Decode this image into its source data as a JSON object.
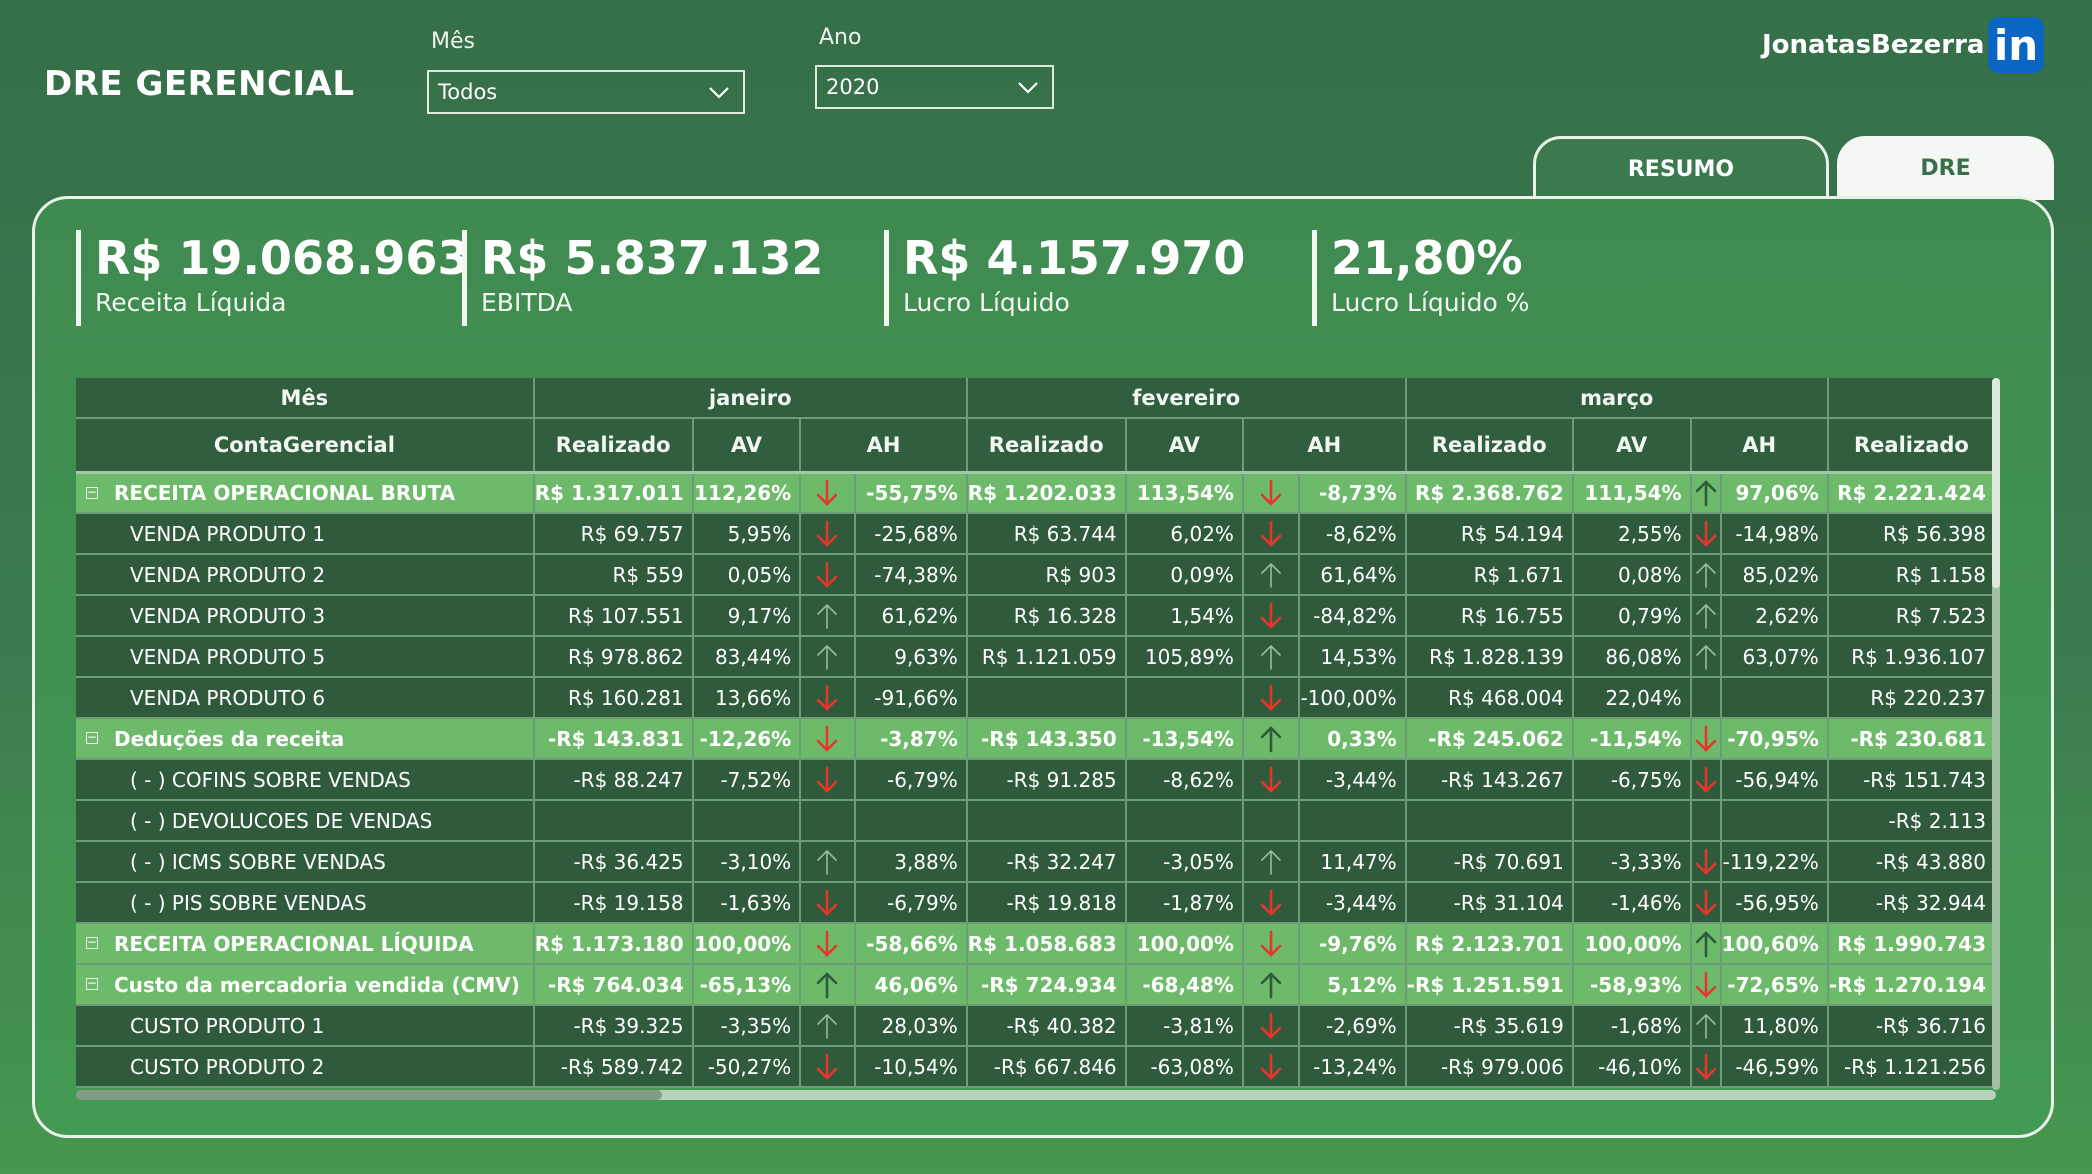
{
  "header": {
    "title": "DRE GERENCIAL",
    "brand": "JonatasBezerra",
    "linkedin_glyph": "in"
  },
  "filters": {
    "mes": {
      "label": "Mês",
      "value": "Todos"
    },
    "ano": {
      "label": "Ano",
      "value": "2020"
    }
  },
  "tabs": [
    {
      "label": "RESUMO"
    },
    {
      "label": "DRE",
      "active": true
    }
  ],
  "kpis": [
    {
      "value": "R$ 19.068.963",
      "label": "Receita Líquida"
    },
    {
      "value": "R$ 5.837.132",
      "label": "EBITDA"
    },
    {
      "value": "R$ 4.157.970",
      "label": "Lucro Líquido"
    },
    {
      "value": "21,80%",
      "label": "Lucro Líquido %"
    }
  ],
  "table": {
    "month_header_label": "Mês",
    "row_header_label": "ContaGerencial",
    "months": [
      "janeiro",
      "fevereiro",
      "março",
      ""
    ],
    "measures": [
      "Realizado",
      "AV",
      "AH"
    ],
    "rows": [
      {
        "name": "RECEITA OPERACIONAL BRUTA",
        "group": true,
        "cells": [
          {
            "r": "R$ 1.317.011",
            "av": "112,26%",
            "ah": "-55,75%",
            "dir": "down",
            "tone": "red"
          },
          {
            "r": "R$ 1.202.033",
            "av": "113,54%",
            "ah": "-8,73%",
            "dir": "down",
            "tone": "red"
          },
          {
            "r": "R$ 2.368.762",
            "av": "111,54%",
            "ah": "97,06%",
            "dir": "up",
            "tone": "dark"
          },
          {
            "r": "R$ 2.221.424"
          }
        ]
      },
      {
        "name": "VENDA PRODUTO 1",
        "cells": [
          {
            "r": "R$ 69.757",
            "av": "5,95%",
            "ah": "-25,68%",
            "dir": "down",
            "tone": "red"
          },
          {
            "r": "R$ 63.744",
            "av": "6,02%",
            "ah": "-8,62%",
            "dir": "down",
            "tone": "red"
          },
          {
            "r": "R$ 54.194",
            "av": "2,55%",
            "ah": "-14,98%",
            "dir": "down",
            "tone": "red"
          },
          {
            "r": "R$ 56.398"
          }
        ]
      },
      {
        "name": "VENDA PRODUTO 2",
        "cells": [
          {
            "r": "R$ 559",
            "av": "0,05%",
            "ah": "-74,38%",
            "dir": "down",
            "tone": "red"
          },
          {
            "r": "R$ 903",
            "av": "0,09%",
            "ah": "61,64%",
            "dir": "up",
            "tone": "light"
          },
          {
            "r": "R$ 1.671",
            "av": "0,08%",
            "ah": "85,02%",
            "dir": "up",
            "tone": "light"
          },
          {
            "r": "R$ 1.158"
          }
        ]
      },
      {
        "name": "VENDA PRODUTO 3",
        "cells": [
          {
            "r": "R$ 107.551",
            "av": "9,17%",
            "ah": "61,62%",
            "dir": "up",
            "tone": "light"
          },
          {
            "r": "R$ 16.328",
            "av": "1,54%",
            "ah": "-84,82%",
            "dir": "down",
            "tone": "red"
          },
          {
            "r": "R$ 16.755",
            "av": "0,79%",
            "ah": "2,62%",
            "dir": "up",
            "tone": "light"
          },
          {
            "r": "R$ 7.523"
          }
        ]
      },
      {
        "name": "VENDA PRODUTO 5",
        "cells": [
          {
            "r": "R$ 978.862",
            "av": "83,44%",
            "ah": "9,63%",
            "dir": "up",
            "tone": "light"
          },
          {
            "r": "R$ 1.121.059",
            "av": "105,89%",
            "ah": "14,53%",
            "dir": "up",
            "tone": "light"
          },
          {
            "r": "R$ 1.828.139",
            "av": "86,08%",
            "ah": "63,07%",
            "dir": "up",
            "tone": "light"
          },
          {
            "r": "R$ 1.936.107"
          }
        ]
      },
      {
        "name": "VENDA PRODUTO 6",
        "cells": [
          {
            "r": "R$ 160.281",
            "av": "13,66%",
            "ah": "-91,66%",
            "dir": "down",
            "tone": "red"
          },
          {
            "r": "",
            "av": "",
            "ah": "-100,00%",
            "dir": "down",
            "tone": "red"
          },
          {
            "r": "R$ 468.004",
            "av": "22,04%",
            "ah": ""
          },
          {
            "r": "R$ 220.237"
          }
        ]
      },
      {
        "name": "Deduções da receita",
        "group": true,
        "cells": [
          {
            "r": "-R$ 143.831",
            "av": "-12,26%",
            "ah": "-3,87%",
            "dir": "down",
            "tone": "red"
          },
          {
            "r": "-R$ 143.350",
            "av": "-13,54%",
            "ah": "0,33%",
            "dir": "up",
            "tone": "dark"
          },
          {
            "r": "-R$ 245.062",
            "av": "-11,54%",
            "ah": "-70,95%",
            "dir": "down",
            "tone": "red"
          },
          {
            "r": "-R$ 230.681"
          }
        ]
      },
      {
        "name": "( - ) COFINS SOBRE VENDAS",
        "cells": [
          {
            "r": "-R$ 88.247",
            "av": "-7,52%",
            "ah": "-6,79%",
            "dir": "down",
            "tone": "red"
          },
          {
            "r": "-R$ 91.285",
            "av": "-8,62%",
            "ah": "-3,44%",
            "dir": "down",
            "tone": "red"
          },
          {
            "r": "-R$ 143.267",
            "av": "-6,75%",
            "ah": "-56,94%",
            "dir": "down",
            "tone": "red"
          },
          {
            "r": "-R$ 151.743"
          }
        ]
      },
      {
        "name": "( - ) DEVOLUCOES DE VENDAS",
        "cells": [
          {
            "r": "",
            "av": "",
            "ah": ""
          },
          {
            "r": "",
            "av": "",
            "ah": ""
          },
          {
            "r": "",
            "av": "",
            "ah": ""
          },
          {
            "r": "-R$ 2.113"
          }
        ]
      },
      {
        "name": "( - ) ICMS SOBRE VENDAS",
        "cells": [
          {
            "r": "-R$ 36.425",
            "av": "-3,10%",
            "ah": "3,88%",
            "dir": "up",
            "tone": "light"
          },
          {
            "r": "-R$ 32.247",
            "av": "-3,05%",
            "ah": "11,47%",
            "dir": "up",
            "tone": "light"
          },
          {
            "r": "-R$ 70.691",
            "av": "-3,33%",
            "ah": "-119,22%",
            "dir": "down",
            "tone": "red"
          },
          {
            "r": "-R$ 43.880"
          }
        ]
      },
      {
        "name": "( - ) PIS SOBRE VENDAS",
        "cells": [
          {
            "r": "-R$ 19.158",
            "av": "-1,63%",
            "ah": "-6,79%",
            "dir": "down",
            "tone": "red"
          },
          {
            "r": "-R$ 19.818",
            "av": "-1,87%",
            "ah": "-3,44%",
            "dir": "down",
            "tone": "red"
          },
          {
            "r": "-R$ 31.104",
            "av": "-1,46%",
            "ah": "-56,95%",
            "dir": "down",
            "tone": "red"
          },
          {
            "r": "-R$ 32.944"
          }
        ]
      },
      {
        "name": "RECEITA OPERACIONAL LÍQUIDA",
        "group": true,
        "cells": [
          {
            "r": "R$ 1.173.180",
            "av": "100,00%",
            "ah": "-58,66%",
            "dir": "down",
            "tone": "red"
          },
          {
            "r": "R$ 1.058.683",
            "av": "100,00%",
            "ah": "-9,76%",
            "dir": "down",
            "tone": "red"
          },
          {
            "r": "R$ 2.123.701",
            "av": "100,00%",
            "ah": "100,60%",
            "dir": "up",
            "tone": "dark"
          },
          {
            "r": "R$ 1.990.743"
          }
        ]
      },
      {
        "name": "Custo da mercadoria vendida (CMV)",
        "group": true,
        "cells": [
          {
            "r": "-R$ 764.034",
            "av": "-65,13%",
            "ah": "46,06%",
            "dir": "up",
            "tone": "dark"
          },
          {
            "r": "-R$ 724.934",
            "av": "-68,48%",
            "ah": "5,12%",
            "dir": "up",
            "tone": "dark"
          },
          {
            "r": "-R$ 1.251.591",
            "av": "-58,93%",
            "ah": "-72,65%",
            "dir": "down",
            "tone": "red"
          },
          {
            "r": "-R$ 1.270.194"
          }
        ]
      },
      {
        "name": "CUSTO PRODUTO 1",
        "cells": [
          {
            "r": "-R$ 39.325",
            "av": "-3,35%",
            "ah": "28,03%",
            "dir": "up",
            "tone": "light"
          },
          {
            "r": "-R$ 40.382",
            "av": "-3,81%",
            "ah": "-2,69%",
            "dir": "down",
            "tone": "red"
          },
          {
            "r": "-R$ 35.619",
            "av": "-1,68%",
            "ah": "11,80%",
            "dir": "up",
            "tone": "light"
          },
          {
            "r": "-R$ 36.716"
          }
        ]
      },
      {
        "name": "CUSTO PRODUTO 2",
        "cells": [
          {
            "r": "-R$ 589.742",
            "av": "-50,27%",
            "ah": "-10,54%",
            "dir": "down",
            "tone": "red"
          },
          {
            "r": "-R$ 667.846",
            "av": "-63,08%",
            "ah": "-13,24%",
            "dir": "down",
            "tone": "red"
          },
          {
            "r": "-R$ 979.006",
            "av": "-46,10%",
            "ah": "-46,59%",
            "dir": "down",
            "tone": "red"
          },
          {
            "r": "-R$ 1.121.256"
          }
        ]
      }
    ]
  },
  "colors": {
    "arrow_red": "#e8352c",
    "arrow_dark": "#2f5a3c",
    "arrow_light": "#94bf98"
  },
  "icons": {
    "dropdown": "chevron-down-icon",
    "up": "arrow-up-icon",
    "down": "arrow-down-icon",
    "collapse": "minus-square-icon"
  }
}
